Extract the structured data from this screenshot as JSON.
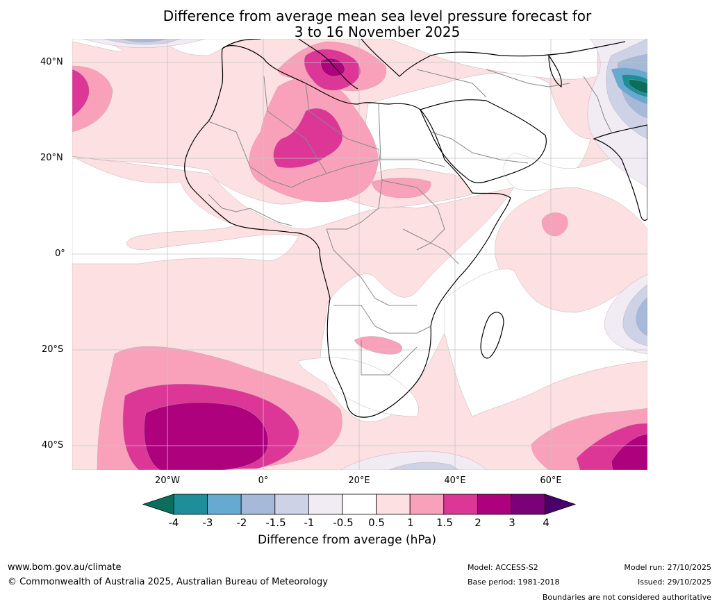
{
  "title": {
    "line1": "Difference from average mean sea level pressure forecast for",
    "line2": "3 to 16 November 2025"
  },
  "map": {
    "latitude_labels": [
      "40°N",
      "20°N",
      "0°",
      "20°S",
      "40°S"
    ],
    "longitude_labels": [
      "20°W",
      "0°",
      "20°E",
      "40°E",
      "60°E"
    ],
    "colors": {
      "c_m4": "#0b6e5a",
      "c_m3": "#1e8e9a",
      "c_m2": "#66a9d1",
      "c_m15": "#a6b9d8",
      "c_m1": "#ced2e6",
      "c_m05": "#f1ebf3",
      "c_0": "#ffffff",
      "c_05": "#fde0e1",
      "c_1": "#f9a1bb",
      "c_15": "#dc3696",
      "c_2": "#ad017e",
      "c_3": "#7a0178",
      "c_4": "#49006a"
    }
  },
  "colorbar": {
    "ticks": [
      "-4",
      "-3",
      "-2",
      "-1.5",
      "-1",
      "-0.5",
      "0.5",
      "1",
      "1.5",
      "2",
      "3",
      "4"
    ],
    "label": "Difference from average (hPa)"
  },
  "footer": {
    "website": "www.bom.gov.au/climate",
    "copyright": "© Commonwealth of Australia 2025, Australian Bureau of Meteorology",
    "model": "Model: ACCESS-S2",
    "base_period": "Base period: 1981-2018",
    "model_run": "Model run: 27/10/2025",
    "issued": "Issued: 29/10/2025",
    "disclaimer": "Boundaries are not considered authoritative"
  }
}
